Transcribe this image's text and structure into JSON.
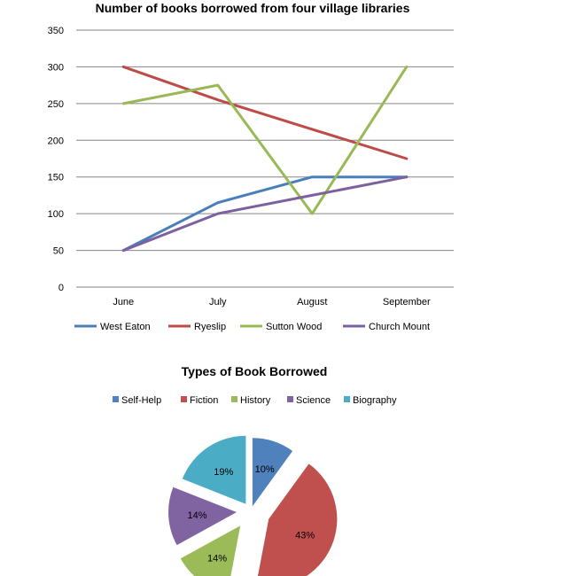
{
  "chart_data": [
    {
      "type": "line",
      "title": "Number of books borrowed from four village libraries",
      "xlabel": "",
      "ylabel": "",
      "categories": [
        "June",
        "July",
        "August",
        "September"
      ],
      "ylim": [
        0,
        350
      ],
      "yticks": [
        0,
        50,
        100,
        150,
        200,
        250,
        300,
        350
      ],
      "grid": true,
      "legend_position": "bottom",
      "series": [
        {
          "name": "West Eaton",
          "values": [
            50,
            115,
            150,
            150
          ],
          "color": "#4a7ebb"
        },
        {
          "name": "Ryeslip",
          "values": [
            300,
            255,
            215,
            175
          ],
          "color": "#be4b48"
        },
        {
          "name": "Sutton Wood",
          "values": [
            250,
            275,
            100,
            300
          ],
          "color": "#98b954"
        },
        {
          "name": "Church Mount",
          "values": [
            50,
            100,
            125,
            150
          ],
          "color": "#7d60a0"
        }
      ]
    },
    {
      "type": "pie",
      "title": "Types of Book Borrowed",
      "legend_position": "top",
      "exploded": true,
      "slices": [
        {
          "label": "Self-Help",
          "value": 10,
          "display": "10%",
          "color": "#4f81bd"
        },
        {
          "label": "Fiction",
          "value": 43,
          "display": "43%",
          "color": "#c0504d"
        },
        {
          "label": "History",
          "value": 14,
          "display": "14%",
          "color": "#9bbb59"
        },
        {
          "label": "Science",
          "value": 14,
          "display": "14%",
          "color": "#8064a2"
        },
        {
          "label": "Biography",
          "value": 19,
          "display": "19%",
          "color": "#4bacc6"
        }
      ]
    }
  ]
}
